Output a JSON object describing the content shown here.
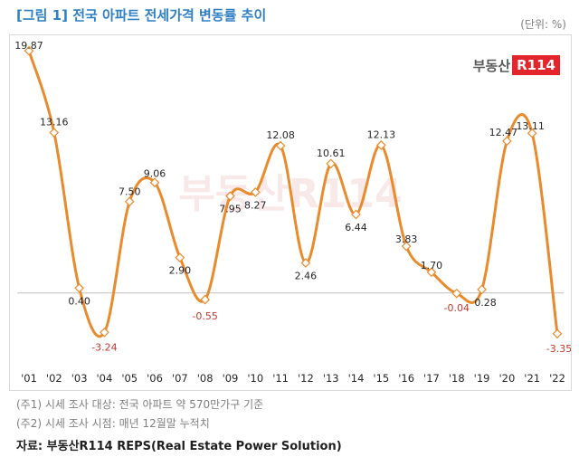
{
  "title": "[그림 1] 전국 아파트 전세가격 변동률 추이",
  "unit": "(단위: %)",
  "brand": {
    "text": "부동산",
    "box": "R114",
    "watermark": "부동산R114"
  },
  "notes": [
    "(주1) 시세 조사 대상: 전국 아파트 약 570만가구 기준",
    "(주2) 시세 조사 시점: 매년 12월말 누적치"
  ],
  "source": "자료: 부동산R114 REPS(Real Estate Power Solution)",
  "colors": {
    "line": "#e98a2c",
    "title": "#2f7fc4",
    "negative": "#c0392b",
    "label": "#262626"
  },
  "chart_data": {
    "type": "line",
    "title": "전국 아파트 전세가격 변동률 추이",
    "ylabel": "(단위: %)",
    "xlabel": "",
    "categories": [
      "'01",
      "'02",
      "'03",
      "'04",
      "'05",
      "'06",
      "'07",
      "'08",
      "'09",
      "'10",
      "'11",
      "'12",
      "'13",
      "'14",
      "'15",
      "'16",
      "'17",
      "'18",
      "'19",
      "'20",
      "'21",
      "'22"
    ],
    "series": [
      {
        "name": "전세가격 변동률",
        "values": [
          19.87,
          13.16,
          0.4,
          -3.24,
          7.5,
          9.06,
          2.9,
          -0.55,
          7.95,
          8.27,
          12.08,
          2.46,
          10.61,
          6.44,
          12.13,
          3.83,
          1.7,
          -0.04,
          0.28,
          12.47,
          13.11,
          -3.35
        ]
      }
    ],
    "data_labels": [
      "19.87",
      "13.16",
      "0.40",
      "-3.24",
      "7.50",
      "9.06",
      "2.90",
      "-0.55",
      "7.95",
      "8.27",
      "12.08",
      "2.46",
      "10.61",
      "6.44",
      "12.13",
      "3.83",
      "1.70",
      "-0.04",
      "0.28",
      "12.47",
      "13.11",
      "-3.35"
    ],
    "ylim": [
      -5,
      21
    ],
    "grid": false,
    "legend": "none"
  }
}
